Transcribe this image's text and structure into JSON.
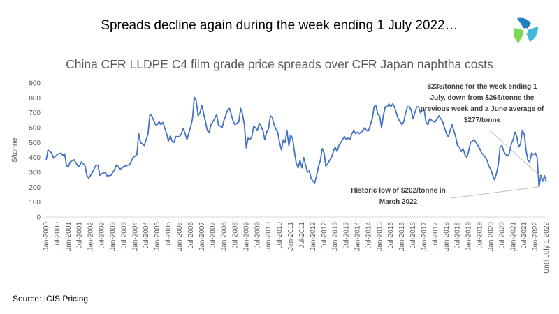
{
  "headline": "Spreads decline again during the week ending 1 July  2022…",
  "source": "Source: ICIS Pricing",
  "logo_icon": "icis-logo-icon",
  "colors": {
    "line": "#4472C4",
    "axis": "#D9D9D9",
    "text": "#595959",
    "logo": [
      "#1f7fbf",
      "#40b8d8",
      "#7ed957"
    ]
  },
  "chart_data": {
    "type": "line",
    "title": "China CFR LLDPE C4 film grade price spreads over CFR Japan naphtha costs",
    "xlabel": "",
    "ylabel": "$/tonne",
    "ylim": [
      0,
      900
    ],
    "yticks": [
      0,
      100,
      200,
      300,
      400,
      500,
      600,
      700,
      800,
      900
    ],
    "grid": false,
    "legend": "none",
    "x_tick_labels": [
      "Jan-2000",
      "Jul-2000",
      "Jan-2001",
      "Jul-2001",
      "Jan-2002",
      "Jul-2002",
      "Jan-2003",
      "Jul-2003",
      "Jan-2004",
      "Jul-2004",
      "Jan-2005",
      "Jul-2005",
      "Jan-2006",
      "Jul-2006",
      "Jan-2007",
      "Jul-2007",
      "Jan-2008",
      "Jul-2008",
      "Jan-2009",
      "Jul-2009",
      "Jan-2010",
      "Jul-2010",
      "Jan-2011",
      "Jul-2011",
      "Jan-2012",
      "Jul-2012",
      "Jan-2013",
      "Jul-2013",
      "Jan-2014",
      "Jul-2014",
      "Jan-2015",
      "Jul-2015",
      "Jan-2016",
      "Jul-2016",
      "Jan-2017",
      "Jul-2017",
      "Jan-2018",
      "Jul-2018",
      "Jan-2019",
      "Jul-2019",
      "Jan-2020",
      "Jul-2020",
      "Jan-2021",
      "Jul-2021",
      "Jan-2022",
      "Until July 1 2022"
    ],
    "series_breakpoints": [
      [
        "Jan-2000",
        380
      ],
      [
        "Feb-2000",
        450
      ],
      [
        "Apr-2000",
        430
      ],
      [
        "May-2000",
        395
      ],
      [
        "Jul-2000",
        420
      ],
      [
        "Sep-2000",
        430
      ],
      [
        "Oct-2000",
        415
      ],
      [
        "Nov-2000",
        425
      ],
      [
        "Dec-2000",
        345
      ],
      [
        "Jan-2001",
        335
      ],
      [
        "Feb-2001",
        370
      ],
      [
        "Apr-2001",
        385
      ],
      [
        "Jun-2001",
        345
      ],
      [
        "Jul-2001",
        340
      ],
      [
        "Aug-2001",
        370
      ],
      [
        "Oct-2001",
        345
      ],
      [
        "Nov-2001",
        280
      ],
      [
        "Dec-2001",
        260
      ],
      [
        "Feb-2002",
        300
      ],
      [
        "Apr-2002",
        350
      ],
      [
        "May-2002",
        345
      ],
      [
        "Jun-2002",
        280
      ],
      [
        "Jul-2002",
        290
      ],
      [
        "Sep-2002",
        300
      ],
      [
        "Oct-2002",
        275
      ],
      [
        "Dec-2002",
        280
      ],
      [
        "Feb-2003",
        320
      ],
      [
        "Mar-2003",
        350
      ],
      [
        "May-2003",
        320
      ],
      [
        "Jul-2003",
        340
      ],
      [
        "Oct-2003",
        350
      ],
      [
        "Dec-2003",
        400
      ],
      [
        "Feb-2004",
        420
      ],
      [
        "Mar-2004",
        560
      ],
      [
        "Apr-2004",
        500
      ],
      [
        "Jun-2004",
        480
      ],
      [
        "Aug-2004",
        560
      ],
      [
        "Sep-2004",
        690
      ],
      [
        "Oct-2004",
        680
      ],
      [
        "Dec-2004",
        620
      ],
      [
        "Jan-2005",
        620
      ],
      [
        "Feb-2005",
        640
      ],
      [
        "Mar-2005",
        620
      ],
      [
        "Apr-2005",
        635
      ],
      [
        "Jun-2005",
        560
      ],
      [
        "Jul-2005",
        510
      ],
      [
        "Aug-2005",
        545
      ],
      [
        "Sep-2005",
        510
      ],
      [
        "Oct-2005",
        500
      ],
      [
        "Nov-2005",
        540
      ],
      [
        "Jan-2006",
        540
      ],
      [
        "Feb-2006",
        560
      ],
      [
        "Mar-2006",
        595
      ],
      [
        "Apr-2006",
        560
      ],
      [
        "May-2006",
        520
      ],
      [
        "Jul-2006",
        605
      ],
      [
        "Aug-2006",
        660
      ],
      [
        "Sep-2006",
        805
      ],
      [
        "Oct-2006",
        780
      ],
      [
        "Nov-2006",
        680
      ],
      [
        "Dec-2006",
        700
      ],
      [
        "Jan-2007",
        750
      ],
      [
        "Mar-2007",
        640
      ],
      [
        "Apr-2007",
        580
      ],
      [
        "May-2007",
        570
      ],
      [
        "Jun-2007",
        620
      ],
      [
        "Aug-2007",
        660
      ],
      [
        "Sep-2007",
        690
      ],
      [
        "Oct-2007",
        620
      ],
      [
        "Dec-2007",
        600
      ],
      [
        "Jan-2008",
        650
      ],
      [
        "Mar-2008",
        720
      ],
      [
        "Apr-2008",
        730
      ],
      [
        "Jun-2008",
        640
      ],
      [
        "Jul-2008",
        620
      ],
      [
        "Sep-2008",
        640
      ],
      [
        "Oct-2008",
        730
      ],
      [
        "Nov-2008",
        690
      ],
      [
        "Dec-2008",
        620
      ],
      [
        "Jan-2009",
        465
      ],
      [
        "Feb-2009",
        530
      ],
      [
        "Mar-2009",
        520
      ],
      [
        "Apr-2009",
        540
      ],
      [
        "May-2009",
        610
      ],
      [
        "Jun-2009",
        600
      ],
      [
        "Jul-2009",
        580
      ],
      [
        "Aug-2009",
        630
      ],
      [
        "Sep-2009",
        610
      ],
      [
        "Oct-2009",
        580
      ],
      [
        "Nov-2009",
        520
      ],
      [
        "Dec-2009",
        570
      ],
      [
        "Jan-2010",
        590
      ],
      [
        "Feb-2010",
        680
      ],
      [
        "Mar-2010",
        670
      ],
      [
        "Apr-2010",
        620
      ],
      [
        "May-2010",
        590
      ],
      [
        "Jun-2010",
        570
      ],
      [
        "Jul-2010",
        500
      ],
      [
        "Aug-2010",
        450
      ],
      [
        "Sep-2010",
        520
      ],
      [
        "Oct-2010",
        500
      ],
      [
        "Nov-2010",
        580
      ],
      [
        "Dec-2010",
        480
      ],
      [
        "Jan-2011",
        550
      ],
      [
        "Feb-2011",
        530
      ],
      [
        "Mar-2011",
        440
      ],
      [
        "Apr-2011",
        360
      ],
      [
        "May-2011",
        330
      ],
      [
        "Jun-2011",
        380
      ],
      [
        "Jul-2011",
        330
      ],
      [
        "Aug-2011",
        400
      ],
      [
        "Sep-2011",
        350
      ],
      [
        "Oct-2011",
        300
      ],
      [
        "Nov-2011",
        310
      ],
      [
        "Dec-2011",
        260
      ],
      [
        "Jan-2012",
        240
      ],
      [
        "Feb-2012",
        230
      ],
      [
        "Mar-2012",
        280
      ],
      [
        "Apr-2012",
        340
      ],
      [
        "May-2012",
        380
      ],
      [
        "Jun-2012",
        460
      ],
      [
        "Jul-2012",
        430
      ],
      [
        "Aug-2012",
        340
      ],
      [
        "Sep-2012",
        360
      ],
      [
        "Oct-2012",
        380
      ],
      [
        "Nov-2012",
        400
      ],
      [
        "Dec-2012",
        440
      ],
      [
        "Jan-2013",
        470
      ],
      [
        "Feb-2013",
        440
      ],
      [
        "Mar-2013",
        480
      ],
      [
        "Apr-2013",
        500
      ],
      [
        "May-2013",
        520
      ],
      [
        "Jun-2013",
        540
      ],
      [
        "Jul-2013",
        520
      ],
      [
        "Aug-2013",
        530
      ],
      [
        "Sep-2013",
        520
      ],
      [
        "Oct-2013",
        560
      ],
      [
        "Nov-2013",
        580
      ],
      [
        "Dec-2013",
        560
      ],
      [
        "Jan-2014",
        570
      ],
      [
        "Feb-2014",
        560
      ],
      [
        "Mar-2014",
        570
      ],
      [
        "Apr-2014",
        580
      ],
      [
        "May-2014",
        600
      ],
      [
        "Jun-2014",
        580
      ],
      [
        "Jul-2014",
        580
      ],
      [
        "Aug-2014",
        620
      ],
      [
        "Sep-2014",
        660
      ],
      [
        "Oct-2014",
        740
      ],
      [
        "Nov-2014",
        750
      ],
      [
        "Dec-2014",
        690
      ],
      [
        "Jan-2015",
        680
      ],
      [
        "Feb-2015",
        600
      ],
      [
        "Mar-2015",
        680
      ],
      [
        "Apr-2015",
        740
      ],
      [
        "May-2015",
        740
      ],
      [
        "Jun-2015",
        760
      ],
      [
        "Jul-2015",
        740
      ],
      [
        "Aug-2015",
        760
      ],
      [
        "Sep-2015",
        740
      ],
      [
        "Oct-2015",
        700
      ],
      [
        "Nov-2015",
        660
      ],
      [
        "Dec-2015",
        640
      ],
      [
        "Jan-2016",
        620
      ],
      [
        "Feb-2016",
        640
      ],
      [
        "Mar-2016",
        700
      ],
      [
        "Apr-2016",
        740
      ],
      [
        "May-2016",
        740
      ],
      [
        "Jun-2016",
        720
      ],
      [
        "Jul-2016",
        660
      ],
      [
        "Aug-2016",
        700
      ],
      [
        "Sep-2016",
        740
      ],
      [
        "Oct-2016",
        740
      ],
      [
        "Nov-2016",
        700
      ],
      [
        "Dec-2016",
        720
      ],
      [
        "Jan-2017",
        720
      ],
      [
        "Feb-2017",
        640
      ],
      [
        "Mar-2017",
        620
      ],
      [
        "Apr-2017",
        660
      ],
      [
        "May-2017",
        650
      ],
      [
        "Jun-2017",
        640
      ],
      [
        "Jul-2017",
        640
      ],
      [
        "Aug-2017",
        660
      ],
      [
        "Sep-2017",
        680
      ],
      [
        "Oct-2017",
        660
      ],
      [
        "Nov-2017",
        640
      ],
      [
        "Dec-2017",
        600
      ],
      [
        "Jan-2018",
        560
      ],
      [
        "Feb-2018",
        540
      ],
      [
        "Mar-2018",
        580
      ],
      [
        "Apr-2018",
        620
      ],
      [
        "May-2018",
        580
      ],
      [
        "Jun-2018",
        540
      ],
      [
        "Jul-2018",
        480
      ],
      [
        "Aug-2018",
        470
      ],
      [
        "Sep-2018",
        440
      ],
      [
        "Oct-2018",
        460
      ],
      [
        "Nov-2018",
        420
      ],
      [
        "Dec-2018",
        400
      ],
      [
        "Jan-2019",
        440
      ],
      [
        "Feb-2019",
        500
      ],
      [
        "Mar-2019",
        510
      ],
      [
        "Apr-2019",
        520
      ],
      [
        "May-2019",
        500
      ],
      [
        "Jun-2019",
        480
      ],
      [
        "Jul-2019",
        460
      ],
      [
        "Aug-2019",
        430
      ],
      [
        "Sep-2019",
        420
      ],
      [
        "Oct-2019",
        400
      ],
      [
        "Nov-2019",
        380
      ],
      [
        "Dec-2019",
        340
      ],
      [
        "Jan-2020",
        320
      ],
      [
        "Feb-2020",
        280
      ],
      [
        "Mar-2020",
        250
      ],
      [
        "Apr-2020",
        290
      ],
      [
        "May-2020",
        350
      ],
      [
        "Jun-2020",
        470
      ],
      [
        "Jul-2020",
        480
      ],
      [
        "Aug-2020",
        440
      ],
      [
        "Sep-2020",
        420
      ],
      [
        "Oct-2020",
        410
      ],
      [
        "Nov-2020",
        430
      ],
      [
        "Dec-2020",
        490
      ],
      [
        "Jan-2021",
        520
      ],
      [
        "Feb-2021",
        570
      ],
      [
        "Mar-2021",
        540
      ],
      [
        "Apr-2021",
        470
      ],
      [
        "May-2021",
        490
      ],
      [
        "Jun-2021",
        580
      ],
      [
        "Jul-2021",
        560
      ],
      [
        "Aug-2021",
        450
      ],
      [
        "Sep-2021",
        380
      ],
      [
        "Oct-2021",
        370
      ],
      [
        "Nov-2021",
        430
      ],
      [
        "Dec-2021",
        420
      ],
      [
        "Jan-2022",
        430
      ],
      [
        "Feb-2022",
        400
      ],
      [
        "Mar-2022",
        202
      ],
      [
        "Apr-2022",
        280
      ],
      [
        "May-2022",
        240
      ],
      [
        "Jun-2022",
        277
      ],
      [
        "Until July 1 2022",
        235
      ]
    ],
    "annotations": [
      {
        "text": [
          "$235/tonne for the week ending 1",
          "July, down from $268/tonne the",
          "previous week and a June average of",
          "$277/tonne"
        ]
      },
      {
        "text": [
          "Historic low of $202/tonne in",
          "March 2022"
        ]
      }
    ]
  }
}
